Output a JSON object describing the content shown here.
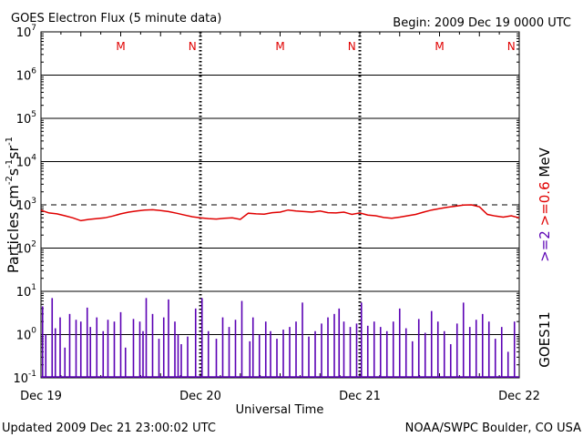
{
  "title": "GOES Electron Flux (5 minute data)",
  "begin": "Begin: 2009 Dec 19 0000 UTC",
  "updated": "Updated 2009 Dec 21 23:00:02 UTC",
  "source": "NOAA/SWPC Boulder, CO USA",
  "colors": {
    "series1": "#e00000",
    "series2": "#5a00b4",
    "frame": "#000000",
    "marker": "#e00000"
  },
  "chart_data": {
    "type": "line",
    "xlabel": "Universal Time",
    "ylabel_main": "Particles cm",
    "ylabel_units": [
      {
        "base": "Particles cm",
        "sup": "-2"
      },
      {
        "base": "s",
        "sup": "-1"
      },
      {
        "base": "sr",
        "sup": "-1"
      }
    ],
    "y_scale": "log",
    "ylim": [
      0.1,
      10000000
    ],
    "y_ticks": [
      {
        "base": "10",
        "exp": "-1",
        "value": 0.1
      },
      {
        "base": "10",
        "exp": "0",
        "value": 1
      },
      {
        "base": "10",
        "exp": "1",
        "value": 10
      },
      {
        "base": "10",
        "exp": "2",
        "value": 100
      },
      {
        "base": "10",
        "exp": "3",
        "value": 1000
      },
      {
        "base": "10",
        "exp": "4",
        "value": 10000
      },
      {
        "base": "10",
        "exp": "5",
        "value": 100000
      },
      {
        "base": "10",
        "exp": "6",
        "value": 1000000
      },
      {
        "base": "10",
        "exp": "7",
        "value": 10000000
      }
    ],
    "x_ticks": [
      "Dec 19",
      "Dec 20",
      "Dec 21",
      "Dec 22"
    ],
    "xlim_days": [
      0,
      3
    ],
    "threshold": 1000,
    "markers": [
      {
        "label": "M",
        "day": 0.5
      },
      {
        "label": "N",
        "day": 0.95
      },
      {
        "label": "M",
        "day": 1.5
      },
      {
        "label": "N",
        "day": 1.95
      },
      {
        "label": "M",
        "day": 2.5
      },
      {
        "label": "N",
        "day": 2.95
      }
    ],
    "right_labels": {
      "energy": ">=2 >=0.6 MeV",
      "satellite": "GOES11"
    },
    "series": [
      {
        "name": ">=2",
        "color": "#e00000",
        "x_days": [
          0,
          0.05,
          0.1,
          0.15,
          0.2,
          0.25,
          0.3,
          0.35,
          0.4,
          0.45,
          0.5,
          0.55,
          0.6,
          0.65,
          0.7,
          0.75,
          0.8,
          0.85,
          0.9,
          0.95,
          1.0,
          1.05,
          1.1,
          1.15,
          1.2,
          1.25,
          1.3,
          1.35,
          1.4,
          1.45,
          1.5,
          1.55,
          1.6,
          1.65,
          1.7,
          1.75,
          1.8,
          1.85,
          1.9,
          1.95,
          2.0,
          2.05,
          2.1,
          2.15,
          2.2,
          2.25,
          2.3,
          2.35,
          2.4,
          2.45,
          2.5,
          2.55,
          2.6,
          2.65,
          2.7,
          2.75,
          2.8,
          2.85,
          2.9,
          2.95,
          3.0
        ],
        "values": [
          750,
          650,
          620,
          560,
          500,
          430,
          460,
          480,
          500,
          550,
          620,
          680,
          720,
          760,
          770,
          740,
          700,
          640,
          580,
          530,
          500,
          480,
          470,
          490,
          500,
          460,
          640,
          620,
          610,
          660,
          680,
          760,
          720,
          700,
          680,
          720,
          660,
          650,
          680,
          600,
          650,
          580,
          560,
          510,
          490,
          520,
          560,
          600,
          680,
          760,
          820,
          880,
          930,
          990,
          1000,
          900,
          600,
          550,
          520,
          560,
          500
        ]
      },
      {
        "name": ">=0.6",
        "color": "#5a00b4",
        "baseline": 0.1,
        "x_days": [
          0.01,
          0.03,
          0.07,
          0.09,
          0.12,
          0.15,
          0.18,
          0.22,
          0.25,
          0.29,
          0.31,
          0.35,
          0.39,
          0.42,
          0.46,
          0.5,
          0.53,
          0.58,
          0.62,
          0.64,
          0.66,
          0.7,
          0.74,
          0.77,
          0.8,
          0.84,
          0.86,
          0.88,
          0.92,
          0.97,
          1.01,
          1.05,
          1.1,
          1.14,
          1.18,
          1.22,
          1.26,
          1.31,
          1.33,
          1.37,
          1.41,
          1.44,
          1.48,
          1.52,
          1.56,
          1.6,
          1.64,
          1.68,
          1.72,
          1.76,
          1.8,
          1.84,
          1.87,
          1.9,
          1.94,
          1.98,
          2.01,
          2.05,
          2.09,
          2.13,
          2.17,
          2.21,
          2.25,
          2.29,
          2.33,
          2.37,
          2.41,
          2.45,
          2.49,
          2.53,
          2.57,
          2.61,
          2.65,
          2.69,
          2.73,
          2.77,
          2.81,
          2.85,
          2.89,
          2.93,
          2.97
        ],
        "values": [
          4.5,
          1.0,
          7.0,
          1.4,
          2.5,
          0.5,
          3.0,
          2.2,
          2.0,
          4.2,
          1.5,
          2.5,
          1.2,
          2.2,
          2.0,
          3.3,
          0.5,
          2.3,
          2.0,
          1.2,
          7.0,
          3.0,
          0.8,
          2.5,
          6.5,
          2.0,
          1.0,
          0.6,
          0.9,
          4.0,
          7.0,
          1.2,
          0.8,
          2.5,
          1.5,
          2.2,
          6.0,
          0.7,
          2.5,
          1.0,
          2.0,
          1.2,
          0.8,
          1.3,
          1.5,
          2.0,
          5.5,
          0.9,
          1.2,
          1.8,
          2.5,
          3.0,
          4.0,
          2.0,
          1.5,
          1.8,
          5.5,
          1.6,
          2.0,
          1.5,
          1.2,
          2.0,
          4.0,
          1.4,
          0.7,
          2.3,
          1.1,
          3.5,
          2.0,
          1.2,
          0.6,
          1.8,
          5.5,
          1.5,
          2.2,
          3.0,
          2.0,
          0.8,
          1.5,
          0.4,
          2.0
        ]
      }
    ]
  }
}
